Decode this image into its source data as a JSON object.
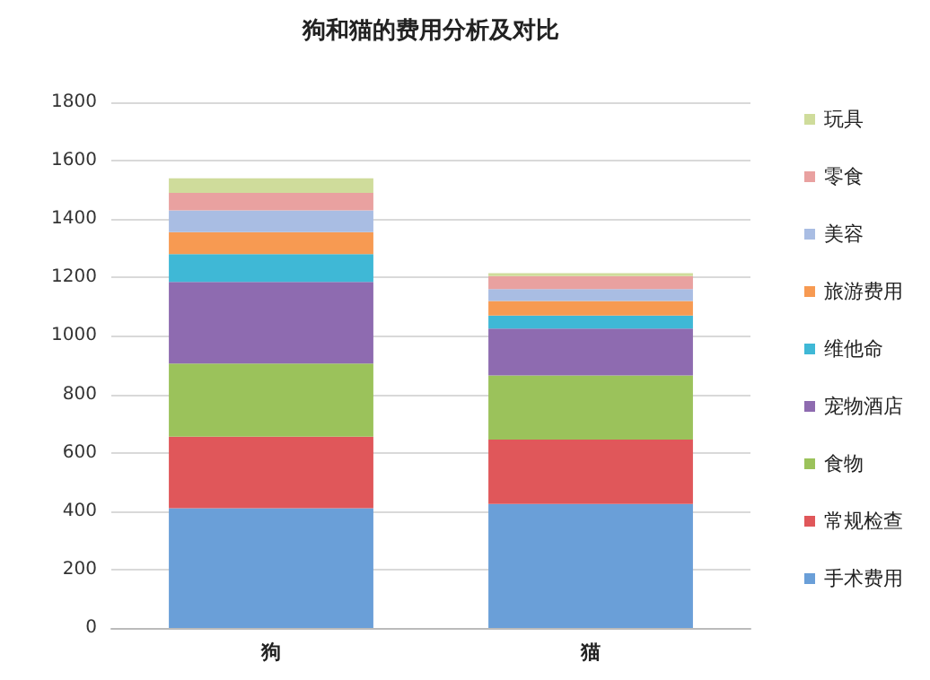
{
  "chart_data": {
    "type": "bar",
    "title": "狗和猫的费用分析及对比",
    "categories": [
      "狗",
      "猫"
    ],
    "stacked": true,
    "series": [
      {
        "name": "手术费用",
        "color": "#6a9fd8",
        "values": [
          410,
          425
        ]
      },
      {
        "name": "常规检查",
        "color": "#e0575a",
        "values": [
          245,
          220
        ]
      },
      {
        "name": "食物",
        "color": "#9bc25b",
        "values": [
          250,
          220
        ]
      },
      {
        "name": "宠物酒店",
        "color": "#8e6bb0",
        "values": [
          280,
          160
        ]
      },
      {
        "name": "维他命",
        "color": "#3fb8d6",
        "values": [
          95,
          45
        ]
      },
      {
        "name": "旅游费用",
        "color": "#f79a52",
        "values": [
          75,
          50
        ]
      },
      {
        "name": "美容",
        "color": "#a9bde3",
        "values": [
          75,
          40
        ]
      },
      {
        "name": "零食",
        "color": "#e9a1a0",
        "values": [
          60,
          45
        ]
      },
      {
        "name": "玩具",
        "color": "#cfdc9b",
        "values": [
          50,
          10
        ]
      }
    ],
    "ylim": [
      0,
      1800
    ],
    "yticks": [
      0,
      200,
      400,
      600,
      800,
      1000,
      1200,
      1400,
      1600,
      1800
    ],
    "grid": "y",
    "legend": "right"
  }
}
